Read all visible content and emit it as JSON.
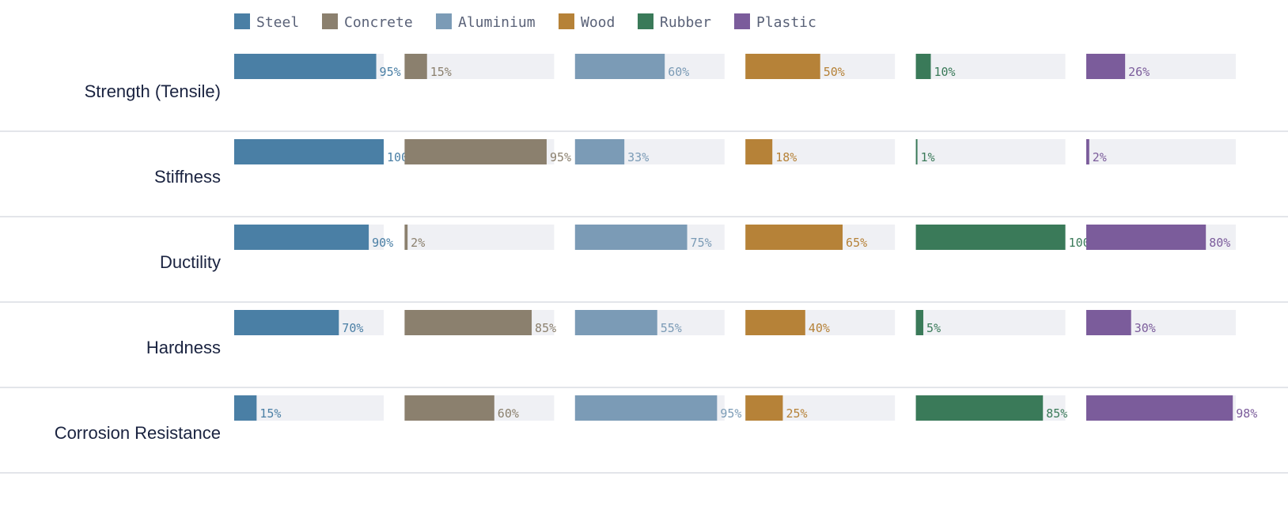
{
  "chart_data": {
    "type": "bar",
    "title": "",
    "xlabel": "",
    "ylabel": "",
    "xlim": [
      0,
      100
    ],
    "value_suffix": "%",
    "legend_position": "top",
    "grid": false,
    "categories": [
      "Strength (Tensile)",
      "Stiffness",
      "Ductility",
      "Hardness",
      "Corrosion Resistance"
    ],
    "series": [
      {
        "name": "Steel",
        "color": "#4a7fa5",
        "values": [
          95,
          100,
          90,
          70,
          15
        ]
      },
      {
        "name": "Concrete",
        "color": "#8b806e",
        "values": [
          15,
          95,
          2,
          85,
          60
        ]
      },
      {
        "name": "Aluminium",
        "color": "#7b9bb6",
        "values": [
          60,
          33,
          75,
          55,
          95
        ]
      },
      {
        "name": "Wood",
        "color": "#b68238",
        "values": [
          50,
          18,
          65,
          40,
          25
        ]
      },
      {
        "name": "Rubber",
        "color": "#3a7a59",
        "values": [
          10,
          1,
          100,
          5,
          85
        ]
      },
      {
        "name": "Plastic",
        "color": "#7b5c9b",
        "values": [
          26,
          2,
          80,
          30,
          98
        ]
      }
    ],
    "track_color": "#eff0f4",
    "separator_color": "#e3e5ea"
  }
}
